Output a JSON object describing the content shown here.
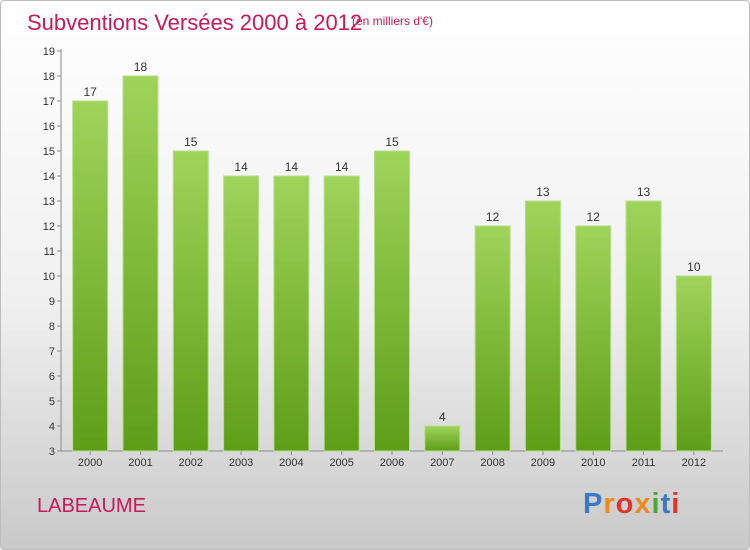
{
  "chart_data": {
    "type": "bar",
    "title": "Subventions Versées 2000 à 2012",
    "subtitle": "(en milliers d'€)",
    "categories": [
      "2000",
      "2001",
      "2002",
      "2003",
      "2004",
      "2005",
      "2006",
      "2007",
      "2008",
      "2009",
      "2010",
      "2011",
      "2012"
    ],
    "values": [
      17,
      18,
      15,
      14,
      14,
      14,
      15,
      4,
      12,
      13,
      12,
      13,
      10
    ],
    "ylim": [
      3,
      19
    ],
    "yticks": [
      3,
      4,
      5,
      6,
      7,
      8,
      9,
      10,
      11,
      12,
      13,
      14,
      15,
      16,
      17,
      18,
      19
    ],
    "grid": false,
    "bar_color": "#7cc242"
  },
  "commune": "LABEAUME",
  "logo_text": "Proxiti"
}
